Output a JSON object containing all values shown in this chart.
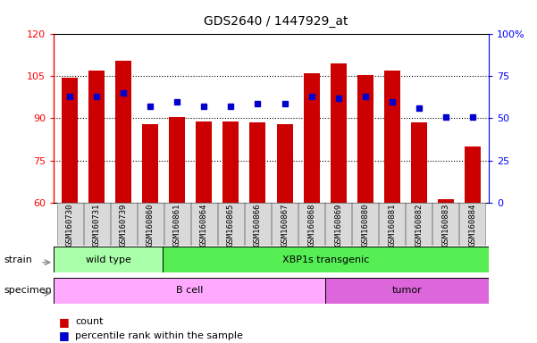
{
  "title": "GDS2640 / 1447929_at",
  "samples": [
    "GSM160730",
    "GSM160731",
    "GSM160739",
    "GSM160860",
    "GSM160861",
    "GSM160864",
    "GSM160865",
    "GSM160866",
    "GSM160867",
    "GSM160868",
    "GSM160869",
    "GSM160880",
    "GSM160881",
    "GSM160882",
    "GSM160883",
    "GSM160884"
  ],
  "counts": [
    104.5,
    107.0,
    110.5,
    88.0,
    90.5,
    89.0,
    89.0,
    88.5,
    88.0,
    106.0,
    109.5,
    105.5,
    107.0,
    88.5,
    61.0,
    80.0
  ],
  "percentiles": [
    63,
    63,
    65,
    57,
    60,
    57,
    57,
    59,
    59,
    63,
    62,
    63,
    60,
    56,
    51,
    51
  ],
  "ylim_left": [
    60,
    120
  ],
  "ylim_right": [
    0,
    100
  ],
  "left_ticks": [
    60,
    75,
    90,
    105,
    120
  ],
  "right_tick_labels": [
    "0",
    "25",
    "50",
    "75",
    "100%"
  ],
  "right_tick_vals": [
    0,
    25,
    50,
    75,
    100
  ],
  "bar_color": "#cc0000",
  "dot_color": "#0000cc",
  "strain_groups": [
    {
      "label": "wild type",
      "start": 0,
      "end": 4,
      "color": "#aaffaa"
    },
    {
      "label": "XBP1s transgenic",
      "start": 4,
      "end": 16,
      "color": "#55ee55"
    }
  ],
  "specimen_groups": [
    {
      "label": "B cell",
      "start": 0,
      "end": 10,
      "color": "#ffaaff"
    },
    {
      "label": "tumor",
      "start": 10,
      "end": 16,
      "color": "#dd66dd"
    }
  ],
  "bg_color": "#ffffff",
  "tick_label_bg": "#d9d9d9",
  "bar_width": 0.6
}
